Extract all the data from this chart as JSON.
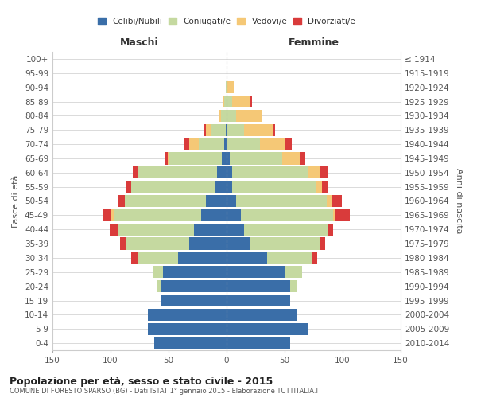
{
  "age_groups": [
    "0-4",
    "5-9",
    "10-14",
    "15-19",
    "20-24",
    "25-29",
    "30-34",
    "35-39",
    "40-44",
    "45-49",
    "50-54",
    "55-59",
    "60-64",
    "65-69",
    "70-74",
    "75-79",
    "80-84",
    "85-89",
    "90-94",
    "95-99",
    "100+"
  ],
  "birth_years": [
    "2010-2014",
    "2005-2009",
    "2000-2004",
    "1995-1999",
    "1990-1994",
    "1985-1989",
    "1980-1984",
    "1975-1979",
    "1970-1974",
    "1965-1969",
    "1960-1964",
    "1955-1959",
    "1950-1954",
    "1945-1949",
    "1940-1944",
    "1935-1939",
    "1930-1934",
    "1925-1929",
    "1920-1924",
    "1915-1919",
    "≤ 1914"
  ],
  "male": {
    "celibi": [
      62,
      68,
      68,
      56,
      57,
      55,
      42,
      32,
      28,
      22,
      18,
      10,
      8,
      4,
      2,
      1,
      0,
      0,
      0,
      0,
      0
    ],
    "coniugati": [
      0,
      0,
      0,
      0,
      3,
      8,
      35,
      55,
      65,
      75,
      70,
      72,
      68,
      45,
      22,
      12,
      5,
      2,
      1,
      0,
      0
    ],
    "vedovi": [
      0,
      0,
      0,
      0,
      0,
      0,
      0,
      0,
      0,
      2,
      0,
      0,
      0,
      2,
      8,
      5,
      2,
      1,
      0,
      0,
      0
    ],
    "divorziati": [
      0,
      0,
      0,
      0,
      0,
      0,
      5,
      5,
      8,
      7,
      5,
      5,
      5,
      2,
      5,
      2,
      0,
      0,
      0,
      0,
      0
    ]
  },
  "female": {
    "nubili": [
      55,
      70,
      60,
      55,
      55,
      50,
      35,
      20,
      15,
      12,
      8,
      5,
      5,
      3,
      1,
      0,
      0,
      0,
      0,
      0,
      0
    ],
    "coniugate": [
      0,
      0,
      0,
      0,
      5,
      15,
      38,
      60,
      72,
      80,
      78,
      72,
      65,
      45,
      28,
      15,
      8,
      5,
      1,
      0,
      0
    ],
    "vedove": [
      0,
      0,
      0,
      0,
      0,
      0,
      0,
      0,
      0,
      2,
      5,
      5,
      10,
      15,
      22,
      25,
      22,
      15,
      5,
      1,
      0
    ],
    "divorziate": [
      0,
      0,
      0,
      0,
      0,
      0,
      5,
      5,
      5,
      12,
      8,
      5,
      8,
      5,
      5,
      2,
      0,
      2,
      0,
      0,
      0
    ]
  },
  "colors": {
    "celibi": "#3a6ea8",
    "coniugati": "#c5d9a0",
    "vedovi": "#f5c876",
    "divorziati": "#d93b3b"
  },
  "title": "Popolazione per età, sesso e stato civile - 2015",
  "subtitle": "COMUNE DI FORESTO SPARSO (BG) - Dati ISTAT 1° gennaio 2015 - Elaborazione TUTTITALIA.IT",
  "xlabel_left": "Maschi",
  "xlabel_right": "Femmine",
  "ylabel_left": "Fasce di età",
  "ylabel_right": "Anni di nascita",
  "xlim": 150,
  "background_color": "#ffffff",
  "grid_color": "#cccccc"
}
